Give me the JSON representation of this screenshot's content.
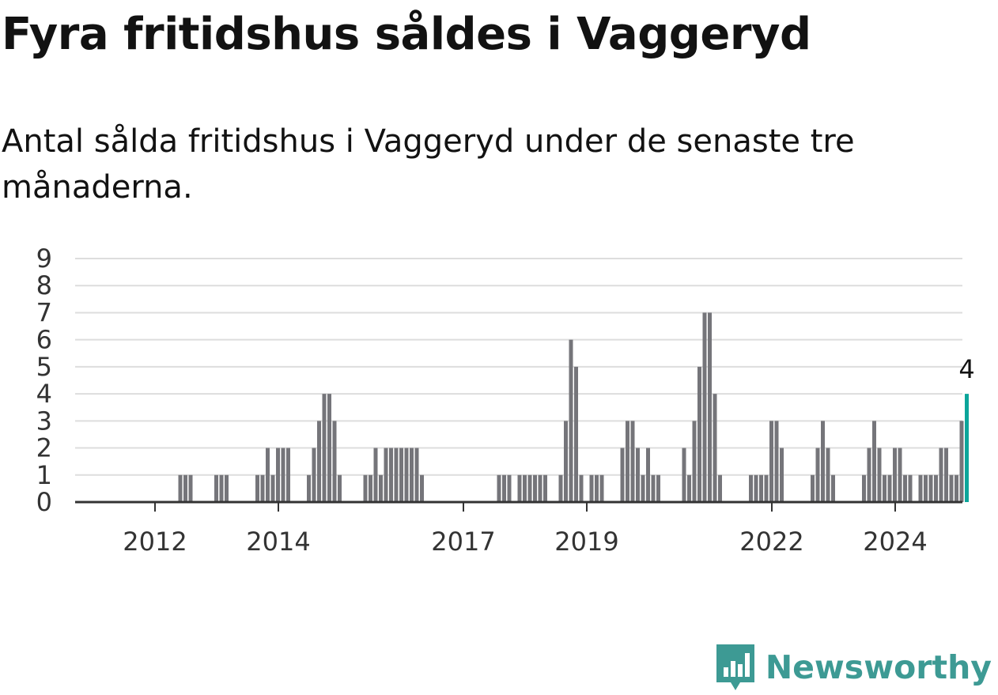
{
  "chart_data": {
    "type": "bar",
    "title": "Fyra fritidshus såldes i Vaggeryd",
    "subtitle": "Antal sålda fritidshus i Vaggeryd under de senaste tre månaderna.",
    "xlabel": "",
    "ylabel": "",
    "ylim": [
      0,
      9
    ],
    "yticks": [
      "0",
      "1",
      "2",
      "3",
      "4",
      "5",
      "6",
      "7",
      "8",
      "9"
    ],
    "xticks": [
      {
        "label": "2012",
        "index": 7
      },
      {
        "label": "2014",
        "index": 31
      },
      {
        "label": "2017",
        "index": 67
      },
      {
        "label": "2019",
        "index": 91
      },
      {
        "label": "2022",
        "index": 127
      },
      {
        "label": "2024",
        "index": 151
      }
    ],
    "grid": true,
    "bar_color": "#75757a",
    "highlight_color": "#0ca59a",
    "values": [
      0,
      0,
      0,
      0,
      0,
      0,
      0,
      0,
      0,
      0,
      1,
      1,
      1,
      0,
      0,
      0,
      0,
      1,
      1,
      1,
      0,
      0,
      0,
      0,
      0,
      1,
      1,
      2,
      1,
      2,
      2,
      2,
      0,
      0,
      0,
      1,
      2,
      3,
      4,
      4,
      3,
      1,
      0,
      0,
      0,
      0,
      1,
      1,
      2,
      1,
      2,
      2,
      2,
      2,
      2,
      2,
      2,
      1,
      0,
      0,
      0,
      0,
      0,
      0,
      0,
      0,
      0,
      0,
      0,
      0,
      0,
      0,
      1,
      1,
      1,
      0,
      1,
      1,
      1,
      1,
      1,
      1,
      0,
      0,
      1,
      3,
      6,
      5,
      1,
      0,
      1,
      1,
      1,
      0,
      0,
      0,
      2,
      3,
      3,
      2,
      1,
      2,
      1,
      1,
      0,
      0,
      0,
      0,
      2,
      1,
      3,
      5,
      7,
      7,
      4,
      1,
      0,
      0,
      0,
      0,
      0,
      1,
      1,
      1,
      1,
      3,
      3,
      2,
      0,
      0,
      0,
      0,
      0,
      1,
      2,
      3,
      2,
      1,
      0,
      0,
      0,
      0,
      0,
      1,
      2,
      3,
      2,
      1,
      1,
      2,
      2,
      1,
      1,
      0,
      1,
      1,
      1,
      1,
      2,
      2,
      1,
      1,
      3,
      4
    ],
    "highlight_index": 163,
    "highlight_label": "4"
  },
  "brand": {
    "name": "Newsworthy",
    "logo_icon": "newsworthy-logo-icon",
    "color": "#3d9a94"
  }
}
